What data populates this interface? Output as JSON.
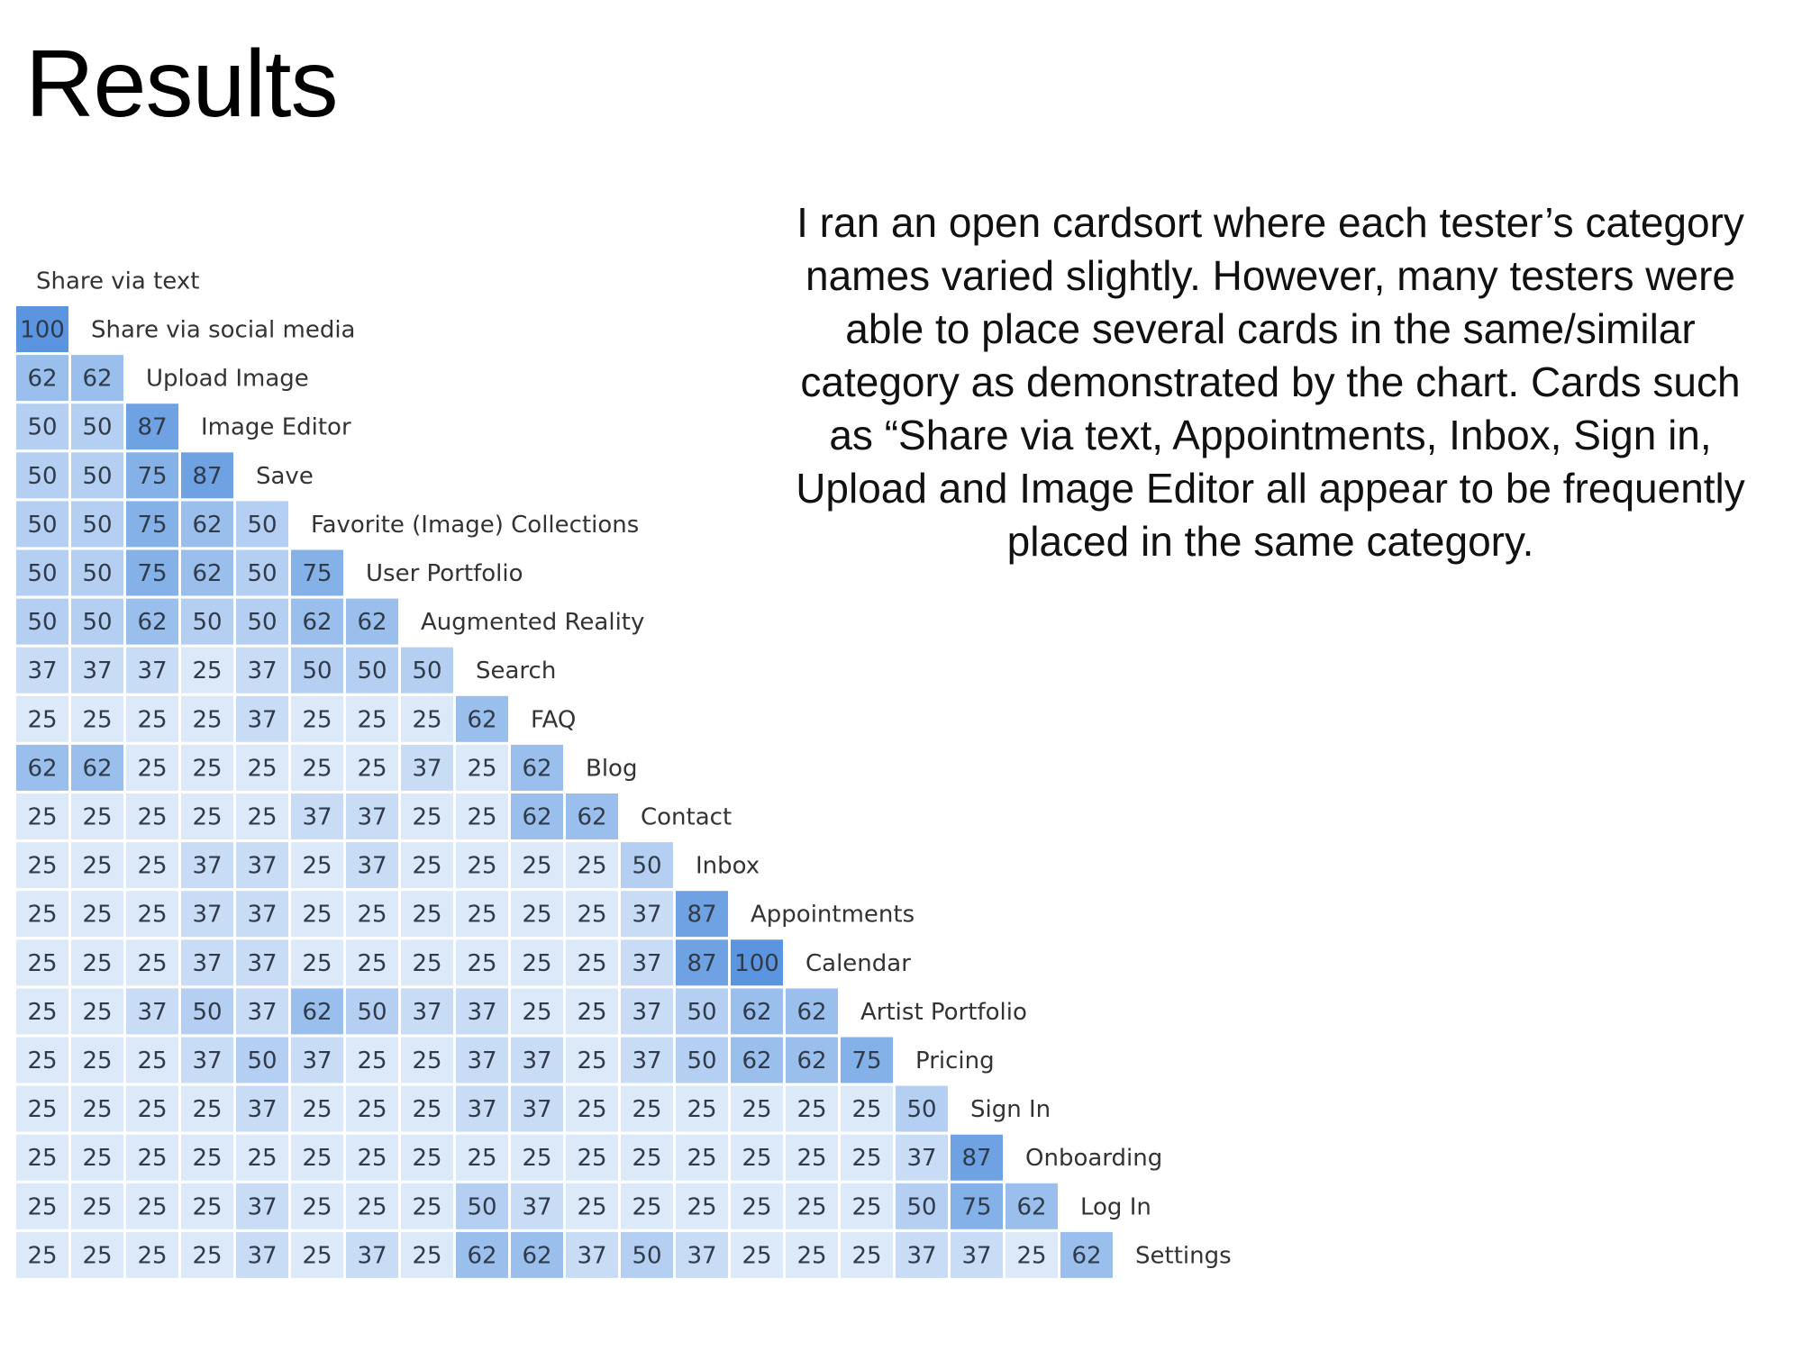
{
  "slide": {
    "title": "Results",
    "description": "I ran an open cardsort where each tester’s category names varied slightly. However, many testers were able to place several cards in the same/similar category as demonstrated by the chart. Cards such as “Share via text, Appointments, Inbox, Sign in, Upload and Image Editor all appear to be frequently placed in the same category."
  },
  "chart_data": {
    "type": "heatmap",
    "title": "",
    "labels": [
      "Share via text",
      "Share via social media",
      "Upload Image",
      "Image Editor",
      "Save",
      "Favorite (Image) Collections",
      "User Portfolio",
      "Augmented Reality",
      "Search",
      "FAQ",
      "Blog",
      "Contact",
      "Inbox",
      "Appointments",
      "Calendar",
      "Artist Portfolio",
      "Pricing",
      "Sign In",
      "Onboarding",
      "Log In",
      "Settings"
    ],
    "rows": [
      [],
      [
        100
      ],
      [
        62,
        62
      ],
      [
        50,
        50,
        87
      ],
      [
        50,
        50,
        75,
        87
      ],
      [
        50,
        50,
        75,
        62,
        50
      ],
      [
        50,
        50,
        75,
        62,
        50,
        75
      ],
      [
        50,
        50,
        62,
        50,
        50,
        62,
        62
      ],
      [
        37,
        37,
        37,
        25,
        37,
        50,
        50,
        50
      ],
      [
        25,
        25,
        25,
        25,
        37,
        25,
        25,
        25,
        62
      ],
      [
        62,
        62,
        25,
        25,
        25,
        25,
        25,
        37,
        25,
        62
      ],
      [
        25,
        25,
        25,
        25,
        25,
        37,
        37,
        25,
        25,
        62,
        62
      ],
      [
        25,
        25,
        25,
        37,
        37,
        25,
        37,
        25,
        25,
        25,
        25,
        50
      ],
      [
        25,
        25,
        25,
        37,
        37,
        25,
        25,
        25,
        25,
        25,
        25,
        37,
        87
      ],
      [
        25,
        25,
        25,
        37,
        37,
        25,
        25,
        25,
        25,
        25,
        25,
        37,
        87,
        100
      ],
      [
        25,
        25,
        37,
        50,
        37,
        62,
        50,
        37,
        37,
        25,
        25,
        37,
        50,
        62,
        62
      ],
      [
        25,
        25,
        25,
        37,
        50,
        37,
        25,
        25,
        37,
        37,
        25,
        37,
        50,
        62,
        62,
        75
      ],
      [
        25,
        25,
        25,
        25,
        37,
        25,
        25,
        25,
        37,
        37,
        25,
        25,
        25,
        25,
        25,
        25,
        50
      ],
      [
        25,
        25,
        25,
        25,
        25,
        25,
        25,
        25,
        25,
        25,
        25,
        25,
        25,
        25,
        25,
        25,
        37,
        87
      ],
      [
        25,
        25,
        25,
        25,
        37,
        25,
        25,
        25,
        50,
        37,
        25,
        25,
        25,
        25,
        25,
        25,
        50,
        75,
        62
      ],
      [
        25,
        25,
        25,
        25,
        37,
        25,
        37,
        25,
        62,
        62,
        37,
        50,
        37,
        25,
        25,
        25,
        37,
        37,
        25,
        62
      ]
    ],
    "color_scale": {
      "25": "#dce9f9",
      "37": "#c8dcf5",
      "50": "#b4cff1",
      "62": "#9bbfec",
      "75": "#84b1e8",
      "87": "#6fa2e3",
      "100": "#5c95df"
    }
  }
}
